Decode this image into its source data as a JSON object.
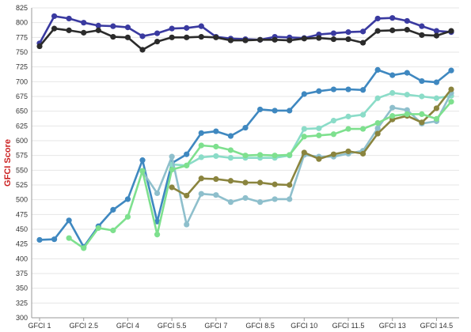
{
  "chart_data": {
    "type": "line",
    "title": "",
    "xlabel": "",
    "ylabel": "GFCI Score",
    "ylabel_color": "#cc2222",
    "ylim": [
      300,
      825
    ],
    "yticks": [
      300,
      325,
      350,
      375,
      400,
      425,
      450,
      475,
      500,
      525,
      550,
      575,
      600,
      625,
      650,
      675,
      700,
      725,
      750,
      775,
      800,
      825
    ],
    "x": [
      1,
      1.5,
      2,
      2.5,
      3,
      3.5,
      4,
      4.5,
      5,
      5.5,
      6,
      6.5,
      7,
      7.5,
      8,
      8.5,
      9,
      9.5,
      10,
      10.5,
      11,
      11.5,
      12,
      12.5,
      13,
      13.5,
      14,
      14.5,
      15
    ],
    "xlim": [
      1,
      15
    ],
    "xticks": [
      1,
      2.5,
      4,
      5.5,
      7,
      8.5,
      10,
      11.5,
      13,
      14.5
    ],
    "xtick_labels": [
      "GFCI 1",
      "GFCI 2.5",
      "GFCI 4",
      "GFCI 5.5",
      "GFCI 7",
      "GFCI 8.5",
      "GFCI 10",
      "GFCI 11.5",
      "GFCI 13",
      "GFCI 14.5"
    ],
    "grid": true,
    "legend": "none",
    "series": [
      {
        "color": "#3a3aa0",
        "values": [
          765,
          811,
          807,
          800,
          795,
          794,
          792,
          777,
          782,
          790,
          791,
          794,
          776,
          773,
          772,
          771,
          776,
          775,
          774,
          780,
          782,
          784,
          785,
          807,
          808,
          803,
          794,
          786,
          784
        ]
      },
      {
        "color": "#2b2b2b",
        "values": [
          760,
          790,
          787,
          783,
          787,
          776,
          775,
          754,
          768,
          775,
          775,
          776,
          775,
          770,
          770,
          771,
          771,
          770,
          773,
          774,
          772,
          772,
          766,
          786,
          787,
          788,
          779,
          778,
          786
        ]
      },
      {
        "color": "#3f88c0",
        "values": [
          432,
          433,
          465,
          420,
          455,
          483,
          501,
          567,
          463,
          562,
          577,
          613,
          616,
          608,
          622,
          653,
          651,
          651,
          679,
          684,
          687,
          687,
          686,
          720,
          711,
          715,
          701,
          699,
          719
        ]
      },
      {
        "color": "#8bdcc8",
        "values": [
          null,
          null,
          null,
          null,
          null,
          null,
          null,
          null,
          null,
          560,
          558,
          572,
          574,
          571,
          571,
          571,
          571,
          575,
          620,
          621,
          634,
          641,
          644,
          672,
          681,
          678,
          675,
          672,
          676
        ]
      },
      {
        "color": "#8ebfcc",
        "values": [
          null,
          null,
          null,
          null,
          null,
          null,
          null,
          548,
          511,
          573,
          458,
          510,
          508,
          496,
          503,
          496,
          501,
          501,
          576,
          573,
          573,
          578,
          583,
          621,
          656,
          652,
          629,
          633,
          681
        ]
      },
      {
        "color": "#8a843e",
        "values": [
          null,
          null,
          null,
          null,
          null,
          null,
          null,
          null,
          null,
          521,
          507,
          536,
          535,
          532,
          529,
          529,
          526,
          525,
          580,
          569,
          577,
          582,
          578,
          612,
          636,
          642,
          631,
          655,
          687
        ]
      },
      {
        "color": "#7ee08e",
        "values": [
          null,
          null,
          435,
          418,
          452,
          448,
          471,
          549,
          441,
          551,
          558,
          592,
          590,
          584,
          575,
          576,
          575,
          576,
          607,
          609,
          611,
          620,
          620,
          630,
          642,
          645,
          645,
          637,
          666
        ]
      }
    ]
  }
}
